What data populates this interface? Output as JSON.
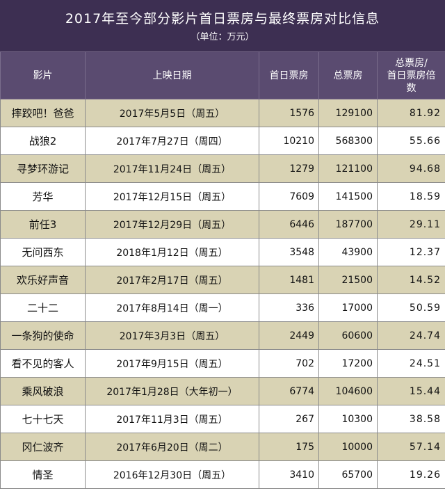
{
  "title": "2017年至今部分影片首日票房与最终票房对比信息",
  "unit": "（单位：万元）",
  "headers": {
    "film": "影片",
    "date": "上映日期",
    "first_day": "首日票房",
    "total": "总票房",
    "ratio_line1": "总票房/",
    "ratio_line2": "首日票房倍",
    "ratio_line3": "数"
  },
  "rows": [
    {
      "film": "摔跤吧！爸爸",
      "date": "2017年5月5日（周五）",
      "first_day": "1576",
      "total": "129100",
      "ratio": "81.92"
    },
    {
      "film": "战狼2",
      "date": "2017年7月27日（周四）",
      "first_day": "10210",
      "total": "568300",
      "ratio": "55.66"
    },
    {
      "film": "寻梦环游记",
      "date": "2017年11月24日（周五）",
      "first_day": "1279",
      "total": "121100",
      "ratio": "94.68"
    },
    {
      "film": "芳华",
      "date": "2017年12月15日（周五）",
      "first_day": "7609",
      "total": "141500",
      "ratio": "18.59"
    },
    {
      "film": "前任3",
      "date": "2017年12月29日（周五）",
      "first_day": "6446",
      "total": "187700",
      "ratio": "29.11"
    },
    {
      "film": "无问西东",
      "date": "2018年1月12日（周五）",
      "first_day": "3548",
      "total": "43900",
      "ratio": "12.37"
    },
    {
      "film": "欢乐好声音",
      "date": "2017年2月17日（周五）",
      "first_day": "1481",
      "total": "21500",
      "ratio": "14.52"
    },
    {
      "film": "二十二",
      "date": "2017年8月14日（周一）",
      "first_day": "336",
      "total": "17000",
      "ratio": "50.59"
    },
    {
      "film": "一条狗的使命",
      "date": "2017年3月3日（周五）",
      "first_day": "2449",
      "total": "60600",
      "ratio": "24.74"
    },
    {
      "film": "看不见的客人",
      "date": "2017年9月15日（周五）",
      "first_day": "702",
      "total": "17200",
      "ratio": "24.51"
    },
    {
      "film": "乘风破浪",
      "date": "2017年1月28日（大年初一）",
      "first_day": "6774",
      "total": "104600",
      "ratio": "15.44"
    },
    {
      "film": "七十七天",
      "date": "2017年11月3日（周五）",
      "first_day": "267",
      "total": "10300",
      "ratio": "38.58"
    },
    {
      "film": "冈仁波齐",
      "date": "2017年6月20日（周二）",
      "first_day": "175",
      "total": "10000",
      "ratio": "57.14"
    },
    {
      "film": "情圣",
      "date": "2016年12月30日（周五）",
      "first_day": "3410",
      "total": "65700",
      "ratio": "19.26"
    }
  ]
}
